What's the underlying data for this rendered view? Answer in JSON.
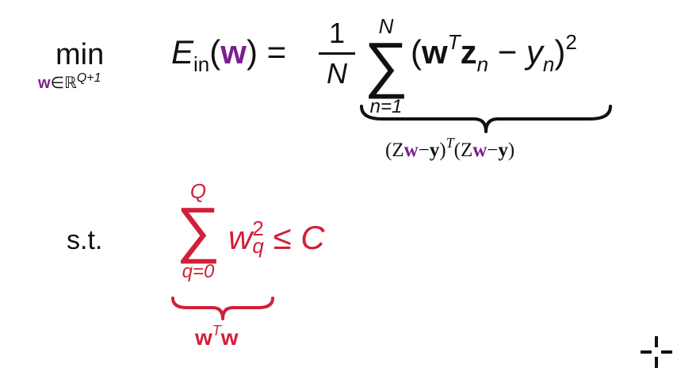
{
  "objective": {
    "min_label": "min",
    "min_subscript": {
      "var": "w",
      "in": "∈ℝ",
      "dim": "Q+1"
    },
    "lhs": {
      "E": "E",
      "in_sub": "in",
      "open": "(",
      "w": "w",
      "close": ")",
      "eq": "="
    },
    "fraction": {
      "numerator": "1",
      "denominator": "N"
    },
    "sum": {
      "symbol": "∑",
      "upper": "N",
      "lower": "n=1"
    },
    "body": {
      "open": "(",
      "w": "w",
      "T": "T",
      "z": "z",
      "n": "n",
      "minus": "−",
      "y": "y",
      "yn": "n",
      "close": ")",
      "power": "2"
    },
    "brace_label": {
      "p1": "(Z",
      "w1": "w",
      "m1": "−",
      "y1": "y",
      "p2": ")",
      "T": "T",
      "p3": "(Z",
      "w2": "w",
      "m2": "−",
      "y2": "y",
      "p4": ")"
    }
  },
  "constraint": {
    "st_label": "s.t.",
    "sum": {
      "symbol": "∑",
      "upper": "Q",
      "lower": "q=0"
    },
    "body": {
      "w": "w",
      "exp": "2",
      "sub": "q",
      "leq": "≤",
      "C": "C"
    },
    "brace_label": {
      "w": "w",
      "T": "T",
      "w2": "w"
    }
  },
  "colors": {
    "purple": "#7a1f8f",
    "red": "#d0203a",
    "black": "#111111"
  },
  "icons": {
    "cursor": "crosshair-icon"
  }
}
